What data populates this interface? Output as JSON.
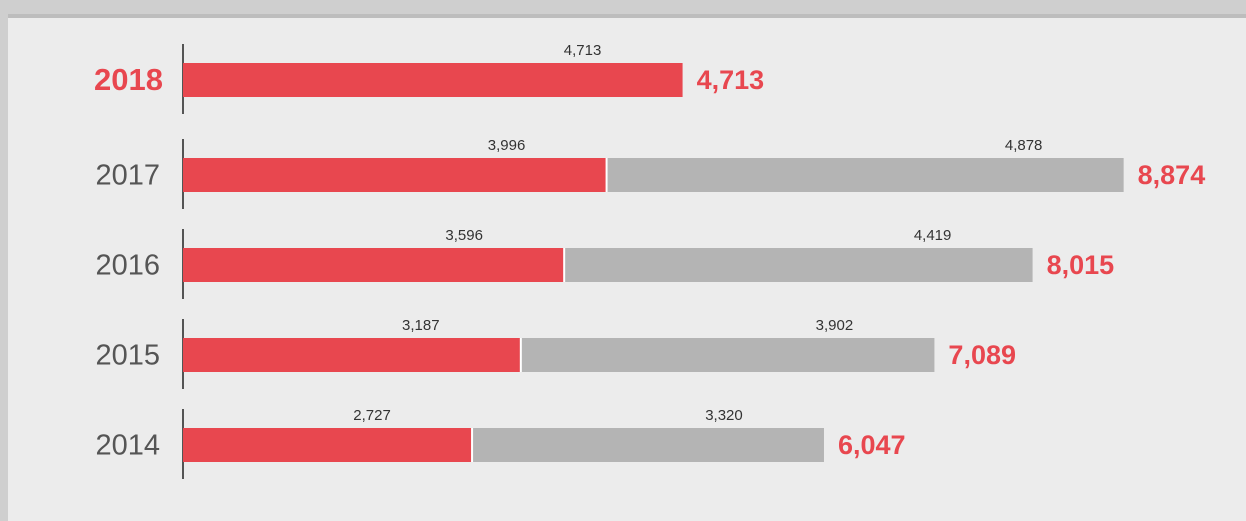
{
  "chart_data": {
    "type": "stacked-bar-horizontal",
    "categories": [
      "2018",
      "2017",
      "2016",
      "2015",
      "2014"
    ],
    "series": [
      {
        "color": "#e8474f",
        "values": [
          4713,
          3996,
          3596,
          3187,
          2727
        ],
        "value_labels": [
          "4,713",
          "3,996",
          "3,596",
          "3,187",
          "2,727"
        ]
      },
      {
        "color": "#b4b4b4",
        "values": [
          null,
          4878,
          4419,
          3902,
          3320
        ],
        "value_labels": [
          null,
          "4,878",
          "4,419",
          "3,902",
          "3,320"
        ]
      }
    ],
    "totals": [
      4713,
      8874,
      8015,
      7089,
      6047
    ],
    "total_labels": [
      "4,713",
      "8,874",
      "8,015",
      "7,089",
      "6,047"
    ],
    "xlim": [
      0,
      9000
    ],
    "highlight_index": 0
  }
}
